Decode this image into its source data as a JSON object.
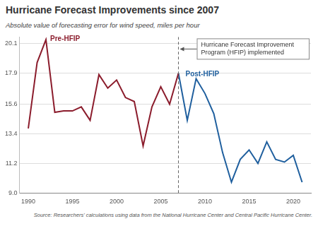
{
  "chart_data": {
    "type": "line",
    "title": "Hurricane Forecast Improvements since 2007",
    "subtitle": "Absolute value of forecasting error for wind speed, miles per hour",
    "source": "Source: Researchers' calculations using data from the National Hurricane Center and Central Pacific Hurricane Center.",
    "x": [
      1990,
      1991,
      1992,
      1993,
      1994,
      1995,
      1996,
      1997,
      1998,
      1999,
      2000,
      2001,
      2002,
      2003,
      2004,
      2005,
      2006,
      2007,
      2008,
      2009,
      2010,
      2011,
      2012,
      2013,
      2014,
      2015,
      2016,
      2017,
      2018,
      2019,
      2020,
      2021
    ],
    "series": [
      {
        "name": "Pre-HFIP",
        "color": "#8b1c2c",
        "values": [
          13.8,
          18.7,
          20.4,
          15.0,
          15.1,
          15.1,
          15.4,
          14.4,
          17.8,
          16.8,
          17.4,
          16.1,
          15.8,
          12.5,
          15.4,
          16.9,
          15.6,
          17.9,
          null,
          null,
          null,
          null,
          null,
          null,
          null,
          null,
          null,
          null,
          null,
          null,
          null,
          null
        ]
      },
      {
        "name": "Post-HFIP",
        "color": "#1f5f9e",
        "values": [
          null,
          null,
          null,
          null,
          null,
          null,
          null,
          null,
          null,
          null,
          null,
          null,
          null,
          null,
          null,
          null,
          null,
          17.9,
          14.4,
          17.5,
          16.4,
          14.9,
          12.0,
          9.8,
          11.5,
          12.2,
          11.2,
          12.8,
          11.5,
          11.3,
          11.8,
          9.8
        ]
      }
    ],
    "xlim": [
      1989,
      2022
    ],
    "xticks": [
      1990,
      1995,
      2000,
      2005,
      2010,
      2015,
      2020
    ],
    "ylim": [
      9.0,
      20.6
    ],
    "yticks": [
      {
        "value": 9.0,
        "label": "9.0"
      },
      11.2,
      13.4,
      15.6,
      17.9,
      20.1
    ],
    "grid": true,
    "annotations": [
      {
        "text": "Hurricane Forecast Improvement Program (HFIP) implemented",
        "x": 2007,
        "line_style": "dashed"
      }
    ]
  }
}
